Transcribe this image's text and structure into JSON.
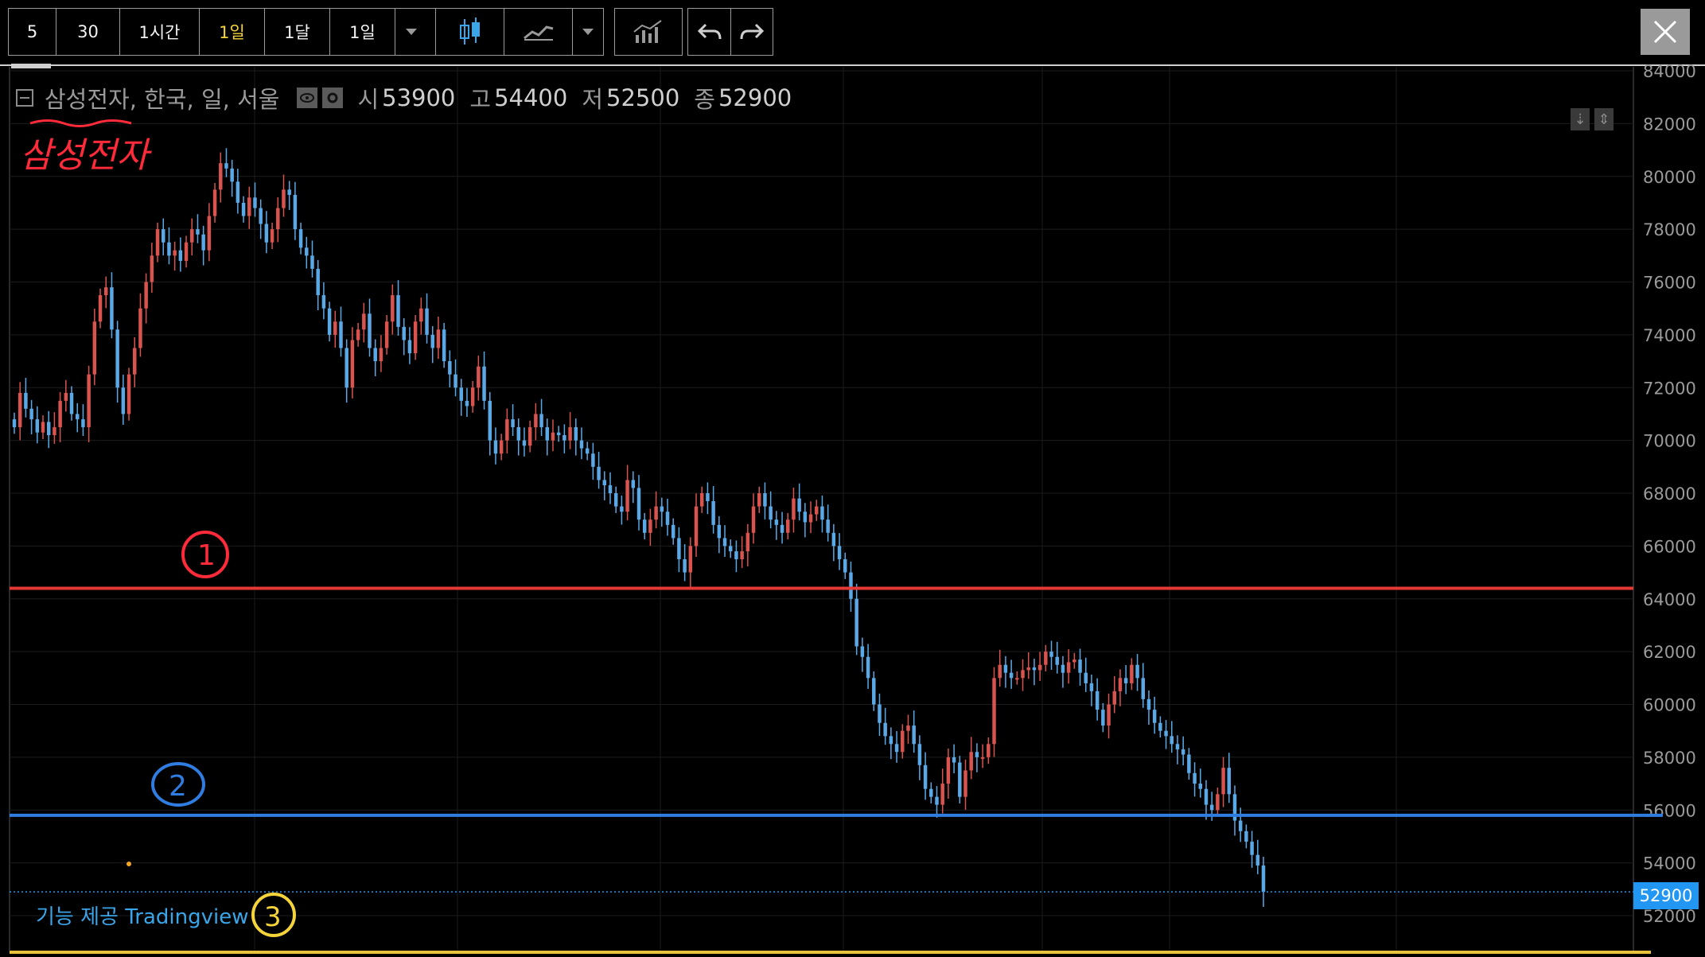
{
  "toolbar": {
    "intervals": [
      "5",
      "30",
      "1시간",
      "1일",
      "1달",
      "1일"
    ],
    "active_interval_index": 3
  },
  "legend": {
    "symbol": "삼성전자, 한국, 일, 서울",
    "open_label": "시",
    "open_value": "53900",
    "high_label": "고",
    "high_value": "54400",
    "low_label": "저",
    "low_value": "52500",
    "close_label": "종",
    "close_value": "52900"
  },
  "price_label": "52900",
  "watermark": "기능 제공 Tradingview",
  "annotations": {
    "handwritten_title": "삼성전자",
    "mark_1": "1",
    "mark_2": "2",
    "mark_3": "3"
  },
  "colors": {
    "background": "#000000",
    "up": "#d9534f",
    "down": "#5aa9e6",
    "line_1": "#e53935",
    "line_2": "#2f7de1",
    "price_line": "#2196f3",
    "accent": "#f5d33a"
  },
  "chart_data": {
    "type": "candlestick",
    "title": "",
    "y_axis_ticks": [
      84000,
      82000,
      80000,
      78000,
      76000,
      74000,
      72000,
      70000,
      68000,
      66000,
      64000,
      62000,
      60000,
      58000,
      56000,
      54000,
      52000
    ],
    "ylim": [
      51500,
      84100
    ],
    "horizontal_lines": [
      {
        "name": "1",
        "value": 64400,
        "color": "#e53935"
      },
      {
        "name": "2",
        "value": 55800,
        "color": "#2f7de1"
      }
    ],
    "last_price": 52900,
    "grid": true,
    "closes": [
      70500,
      71800,
      71200,
      70800,
      70300,
      70700,
      70200,
      70500,
      71500,
      71800,
      71000,
      70800,
      70500,
      72500,
      74500,
      75500,
      75800,
      74200,
      72000,
      71000,
      72500,
      73500,
      75000,
      76000,
      77000,
      78000,
      77500,
      77000,
      77200,
      76800,
      77500,
      78000,
      77800,
      77200,
      78500,
      79500,
      80500,
      80300,
      79800,
      79000,
      78500,
      79200,
      78800,
      78200,
      77500,
      78000,
      78800,
      79500,
      79300,
      78000,
      77300,
      77000,
      76500,
      75500,
      75000,
      74000,
      74500,
      73500,
      72000,
      73800,
      74200,
      74800,
      73500,
      73000,
      73500,
      74500,
      75500,
      74300,
      73800,
      73300,
      74500,
      75000,
      74000,
      73500,
      74200,
      73000,
      72500,
      72000,
      71500,
      71300,
      72000,
      72800,
      71500,
      70000,
      69500,
      70000,
      70800,
      70500,
      70000,
      69800,
      70500,
      71000,
      70500,
      70000,
      70300,
      70200,
      70000,
      70500,
      70000,
      69700,
      69500,
      69000,
      68500,
      68300,
      68000,
      67500,
      67300,
      68500,
      68200,
      67000,
      66500,
      67000,
      67500,
      67300,
      66800,
      66300,
      65500,
      65000,
      66000,
      67500,
      68000,
      67700,
      66800,
      66300,
      66000,
      65800,
      65500,
      65800,
      66500,
      67500,
      68000,
      67500,
      67000,
      66800,
      66500,
      67000,
      67800,
      67300,
      66900,
      67200,
      67500,
      67000,
      66500,
      66000,
      65500,
      65000,
      64000,
      62200,
      61800,
      61000,
      60000,
      59300,
      58800,
      58500,
      58200,
      59000,
      59200,
      58500,
      57700,
      56800,
      56500,
      56200,
      57000,
      58000,
      57800,
      56500,
      57500,
      58200,
      58000,
      58000,
      58500,
      61000,
      61500,
      61200,
      61000,
      61000,
      61300,
      61400,
      61300,
      61500,
      62000,
      61800,
      61500,
      61200,
      61600,
      61700,
      61200,
      60800,
      60500,
      59800,
      59200,
      60000,
      60500,
      61000,
      60800,
      61500,
      61000,
      60200,
      59800,
      59300,
      59000,
      58800,
      58500,
      58300,
      58100,
      57400,
      57000,
      56800,
      56200,
      56000,
      56600,
      57600,
      56600,
      55600,
      55200,
      54800,
      54300,
      53900,
      52900
    ]
  }
}
